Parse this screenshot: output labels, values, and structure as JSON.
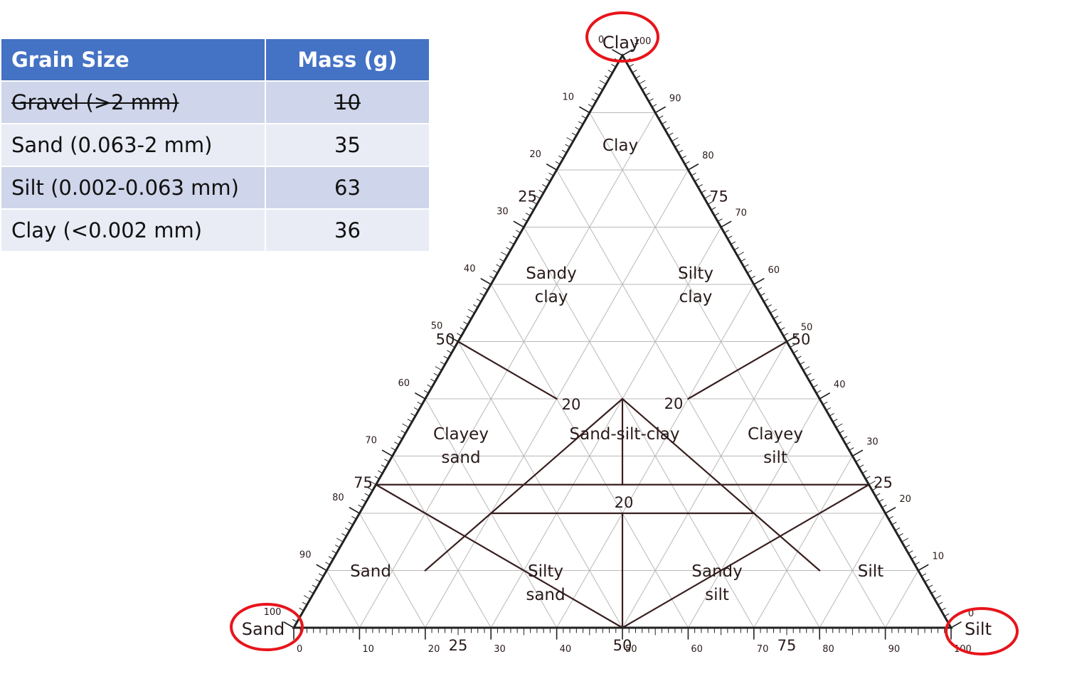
{
  "table": {
    "headers": [
      "Grain Size",
      "Mass (g)"
    ],
    "rows": [
      {
        "size": "Gravel (>2 mm)",
        "mass": "10",
        "struck": true
      },
      {
        "size": "Sand (0.063-2 mm)",
        "mass": "35",
        "struck": false
      },
      {
        "size": "Silt (0.002-0.063 mm)",
        "mass": "63",
        "struck": false
      },
      {
        "size": "Clay (<0.002 mm)",
        "mass": "36",
        "struck": false
      }
    ]
  },
  "diagram": {
    "vertices": {
      "top": "Clay",
      "left": "Sand",
      "right": "Silt"
    },
    "minor_ticks": [
      "0",
      "10",
      "20",
      "30",
      "40",
      "50",
      "60",
      "70",
      "80",
      "90",
      "100"
    ],
    "major_ticks": {
      "25": "25",
      "50": "50",
      "75": "75"
    },
    "regions": {
      "clay": "Clay",
      "sandy_clay": [
        "Sandy",
        "clay"
      ],
      "silty_clay": [
        "Silty",
        "clay"
      ],
      "clayey_sand": [
        "Clayey",
        "sand"
      ],
      "sand_silt_clay": "Sand-silt-clay",
      "clayey_silt": [
        "Clayey",
        "silt"
      ],
      "sand": "Sand",
      "silty_sand": [
        "Silty",
        "sand"
      ],
      "sandy_silt": [
        "Sandy",
        "silt"
      ],
      "silt": "Silt"
    },
    "inner_label": "20",
    "highlight_color": "#e8141b",
    "boundary_color": "#3a1f1f",
    "grid_color": "#b8b8b8"
  }
}
